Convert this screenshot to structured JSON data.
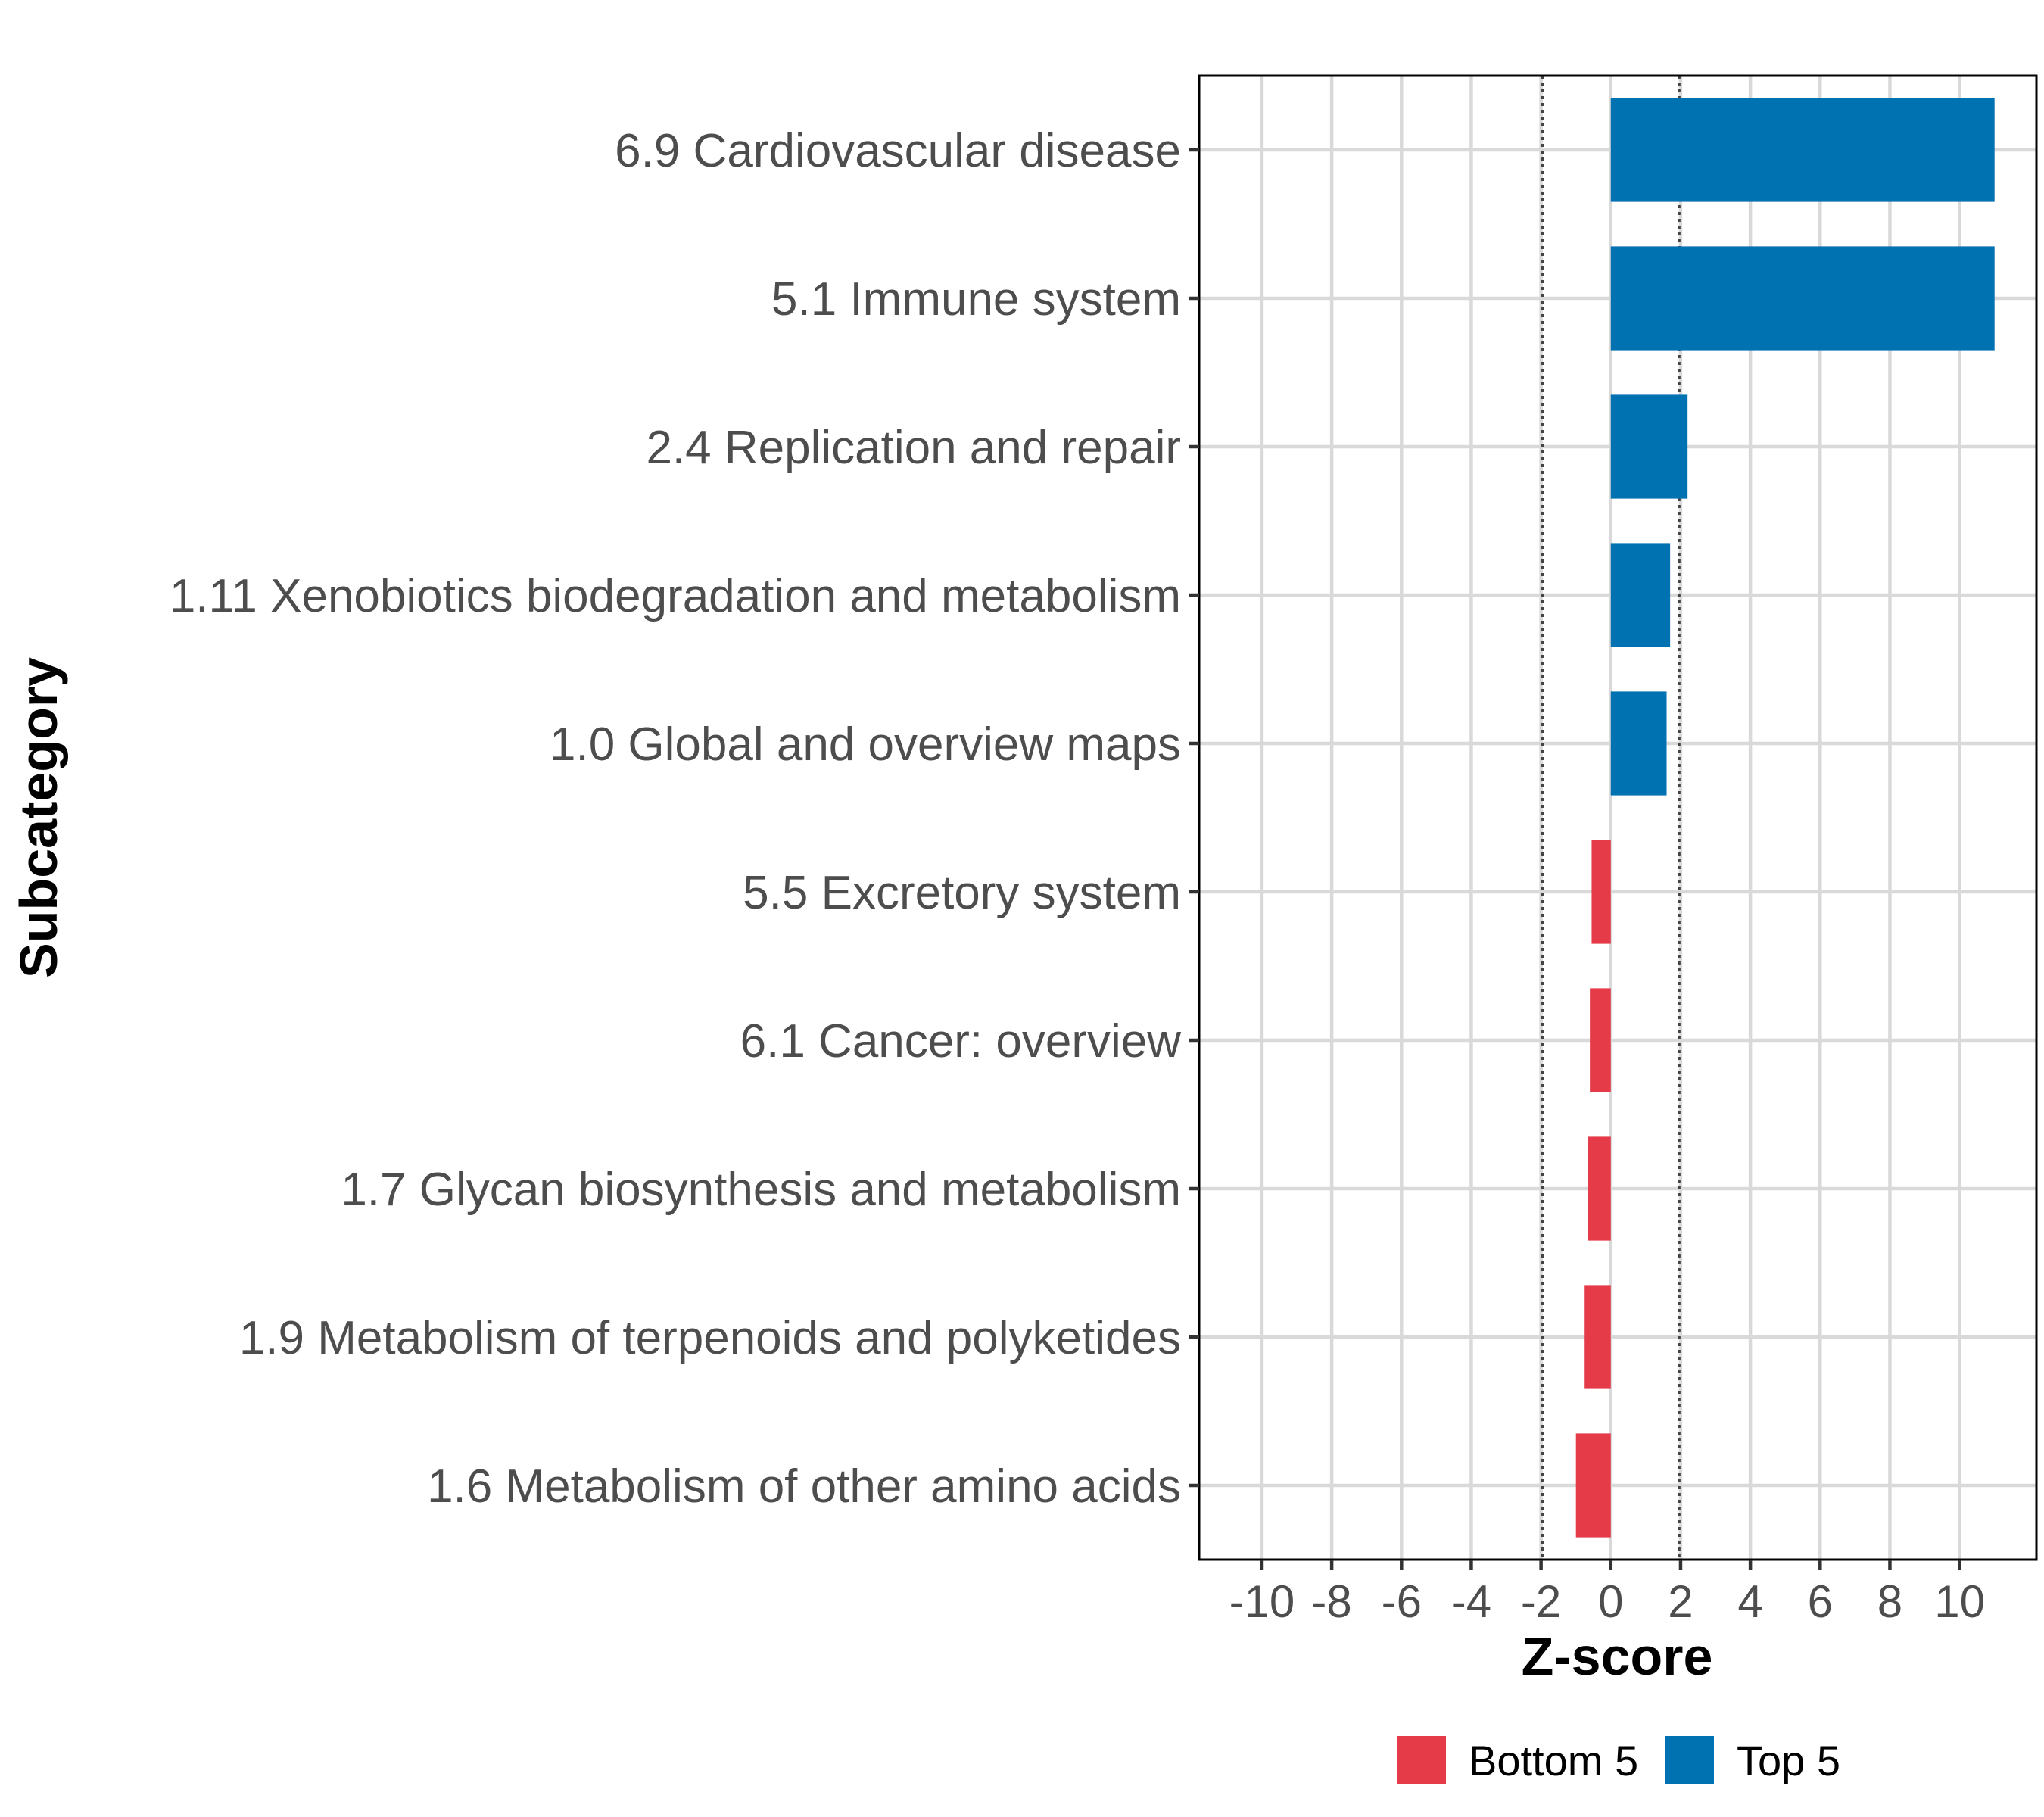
{
  "chart_data": {
    "type": "bar",
    "orientation": "horizontal",
    "xlabel": "Z-score",
    "ylabel": "Subcategory",
    "xlim": [
      -11.8,
      12.2
    ],
    "x_ticks": [
      -10,
      -8,
      -6,
      -4,
      -2,
      0,
      2,
      4,
      6,
      8,
      10
    ],
    "x_tick_labels": [
      "-10",
      "-8",
      "-6",
      "-4",
      "-2",
      "0",
      "2",
      "4",
      "6",
      "8",
      "10"
    ],
    "reference_lines": [
      -1.96,
      1.96
    ],
    "grid": true,
    "legend_position": "bottom",
    "colors": {
      "Top 5": "#0072b2",
      "Bottom 5": "#e53a48"
    },
    "legend": [
      {
        "label": "Bottom 5",
        "color": "#e53a48"
      },
      {
        "label": "Top 5",
        "color": "#0072b2"
      }
    ],
    "bars": [
      {
        "category": "6.9 Cardiovascular disease",
        "value": 11.0,
        "group": "Top 5"
      },
      {
        "category": "5.1 Immune system",
        "value": 11.0,
        "group": "Top 5"
      },
      {
        "category": "2.4 Replication and repair",
        "value": 2.2,
        "group": "Top 5"
      },
      {
        "category": "1.11 Xenobiotics biodegradation and metabolism",
        "value": 1.7,
        "group": "Top 5"
      },
      {
        "category": "1.0 Global and overview maps",
        "value": 1.6,
        "group": "Top 5"
      },
      {
        "category": "5.5 Excretory system",
        "value": -0.55,
        "group": "Bottom 5"
      },
      {
        "category": "6.1 Cancer: overview",
        "value": -0.6,
        "group": "Bottom 5"
      },
      {
        "category": "1.7 Glycan biosynthesis and metabolism",
        "value": -0.65,
        "group": "Bottom 5"
      },
      {
        "category": "1.9 Metabolism of terpenoids and polyketides",
        "value": -0.75,
        "group": "Bottom 5"
      },
      {
        "category": "1.6 Metabolism of other amino acids",
        "value": -1.0,
        "group": "Bottom 5"
      }
    ]
  }
}
